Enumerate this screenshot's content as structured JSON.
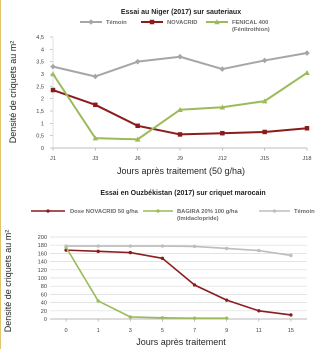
{
  "chart_data": [
    {
      "type": "line",
      "title": "Essai au Niger (2017) sur sauteriaux",
      "xlabel": "Jours après traitement (50 g/ha)",
      "ylabel": "Densité de criquets au m²",
      "categories": [
        "J1",
        "J3",
        "J6",
        "J9",
        "J12",
        "J15",
        "J18"
      ],
      "ylim": [
        0,
        4.5
      ],
      "yticks": [
        "0",
        "0,5",
        "1",
        "1,5",
        "2",
        "2,5",
        "3",
        "3,5",
        "4",
        "4,5"
      ],
      "grid": false,
      "legend": "top",
      "series": [
        {
          "name": "Témoin",
          "color": "#a6a6a6",
          "marker": "diamond",
          "values": [
            3.3,
            2.9,
            3.5,
            3.7,
            3.2,
            3.55,
            3.85
          ]
        },
        {
          "name": "NOVACRID",
          "color": "#8b1c1c",
          "marker": "square",
          "values": [
            2.35,
            1.75,
            0.9,
            0.55,
            0.6,
            0.65,
            0.8
          ]
        },
        {
          "name": "FENICAL 400",
          "name_sub": "(Fénitrothion)",
          "color": "#9bbb59",
          "marker": "triangle",
          "values": [
            3.0,
            0.4,
            0.35,
            1.55,
            1.65,
            1.9,
            3.05
          ]
        }
      ]
    },
    {
      "type": "line",
      "title": "Essai en Ouzbékistan (2017) sur criquet marocain",
      "xlabel": "Jours après traitement",
      "ylabel": "Densité de criquets au m²",
      "categories": [
        "0",
        "1",
        "3",
        "5",
        "7",
        "9",
        "11",
        "15"
      ],
      "ylim": [
        0,
        200
      ],
      "yticks": [
        "0",
        "20",
        "40",
        "60",
        "80",
        "100",
        "120",
        "140",
        "160",
        "180",
        "200"
      ],
      "grid": true,
      "legend": "top",
      "series": [
        {
          "name": "Dose NOVACRID 50 g/ha",
          "color": "#8b1c1c",
          "marker": "circle",
          "values": [
            168,
            165,
            162,
            148,
            83,
            46,
            20,
            10
          ]
        },
        {
          "name": "BAGIRA 20% 100 g/ha",
          "name_sub": "(Imidaclopride)",
          "color": "#9bbb59",
          "marker": "circle",
          "values": [
            175,
            44,
            5,
            3,
            2,
            2,
            null,
            null
          ]
        },
        {
          "name": "Témoin",
          "color": "#bdbdbd",
          "marker": "circle",
          "values": [
            178,
            178,
            178,
            178,
            177,
            172,
            167,
            155
          ]
        }
      ]
    }
  ]
}
